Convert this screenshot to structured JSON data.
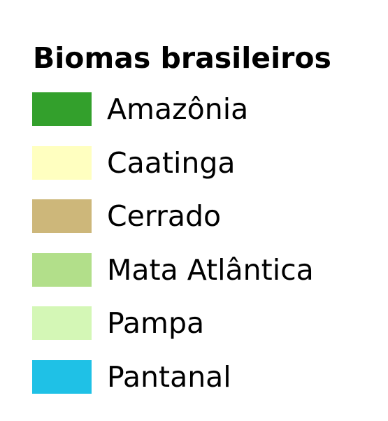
{
  "legend": {
    "title": "Biomas brasileiros",
    "items": [
      {
        "label": "Amazônia",
        "color": "#33a02c"
      },
      {
        "label": "Caatinga",
        "color": "#ffffc0"
      },
      {
        "label": "Cerrado",
        "color": "#cdb77a"
      },
      {
        "label": "Mata Atlântica",
        "color": "#b2df8a"
      },
      {
        "label": "Pampa",
        "color": "#d4f7b6"
      },
      {
        "label": "Pantanal",
        "color": "#1fc1e6"
      }
    ]
  }
}
